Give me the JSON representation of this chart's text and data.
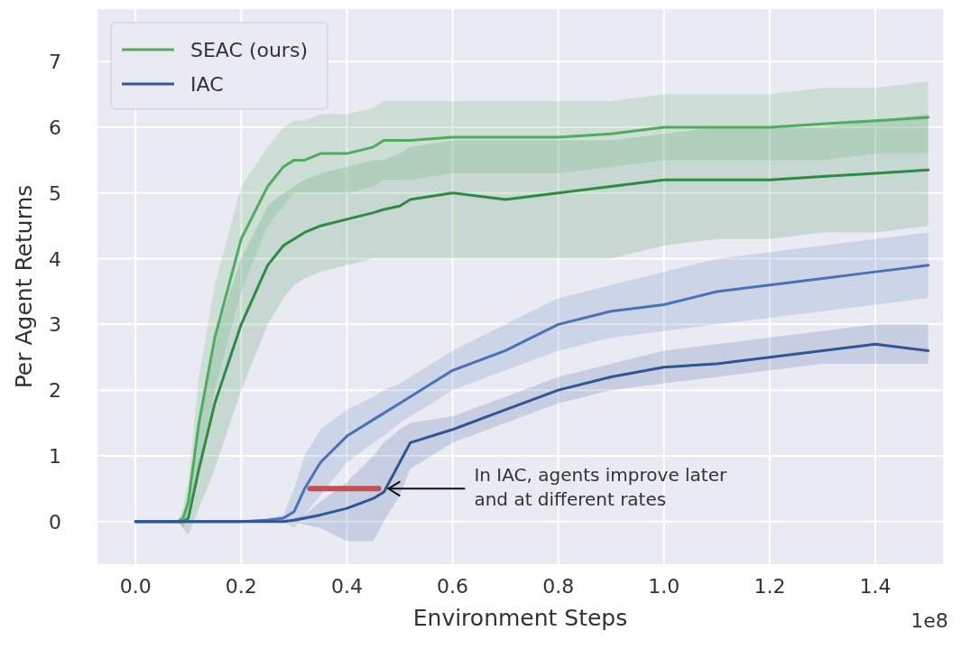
{
  "chart_data": {
    "type": "line",
    "xlabel": "Environment Steps",
    "ylabel": "Per Agent Returns",
    "x": [
      0,
      0.05,
      0.08,
      0.09,
      0.1,
      0.12,
      0.15,
      0.2,
      0.25,
      0.28,
      0.3,
      0.32,
      0.35,
      0.4,
      0.45,
      0.47,
      0.5,
      0.52,
      0.6,
      0.7,
      0.8,
      0.9,
      1.0,
      1.1,
      1.2,
      1.3,
      1.4,
      1.5
    ],
    "series": [
      {
        "name": "SEAC (ours)",
        "color": "#4fab5e",
        "values": [
          0,
          0,
          0,
          0.05,
          0.3,
          1.5,
          2.8,
          4.3,
          5.1,
          5.4,
          5.5,
          5.5,
          5.6,
          5.6,
          5.7,
          5.8,
          5.8,
          5.8,
          5.85,
          5.85,
          5.85,
          5.9,
          6.0,
          6.0,
          6.0,
          6.05,
          6.1,
          6.15
        ],
        "lower": [
          0,
          0,
          0,
          -0.1,
          0,
          0.8,
          2.0,
          3.5,
          4.5,
          4.8,
          5.0,
          5.0,
          5.0,
          5.0,
          5.1,
          5.2,
          5.2,
          5.2,
          5.3,
          5.3,
          5.3,
          5.4,
          5.5,
          5.5,
          5.5,
          5.5,
          5.6,
          5.6
        ],
        "upper": [
          0,
          0,
          0,
          0.2,
          0.6,
          2.2,
          3.6,
          5.1,
          5.7,
          6.0,
          6.1,
          6.1,
          6.2,
          6.2,
          6.3,
          6.4,
          6.4,
          6.4,
          6.4,
          6.4,
          6.4,
          6.4,
          6.5,
          6.5,
          6.5,
          6.6,
          6.6,
          6.7
        ]
      },
      {
        "color": "#2e8b45",
        "values": [
          0,
          0,
          0,
          0,
          0.05,
          0.8,
          1.8,
          3.0,
          3.9,
          4.2,
          4.3,
          4.4,
          4.5,
          4.6,
          4.7,
          4.75,
          4.8,
          4.9,
          5.0,
          4.9,
          5.0,
          5.1,
          5.2,
          5.2,
          5.2,
          5.25,
          5.3,
          5.35
        ],
        "lower": [
          0,
          0,
          0,
          -0.1,
          -0.2,
          0.2,
          0.8,
          2.0,
          3.0,
          3.4,
          3.6,
          3.7,
          3.8,
          3.9,
          4.0,
          4.0,
          4.0,
          4.0,
          4.0,
          4.0,
          4.0,
          4.0,
          4.2,
          4.3,
          4.3,
          4.4,
          4.4,
          4.5
        ],
        "upper": [
          0,
          0,
          0,
          0.1,
          0.4,
          1.6,
          2.8,
          4.0,
          4.8,
          5.0,
          5.1,
          5.2,
          5.3,
          5.4,
          5.5,
          5.5,
          5.6,
          5.7,
          5.8,
          5.8,
          5.8,
          5.8,
          5.9,
          6.0,
          6.0,
          6.0,
          6.1,
          6.2
        ]
      },
      {
        "color": "#4a72b8",
        "values": [
          0,
          0,
          0,
          0,
          0,
          0,
          0,
          0,
          0.02,
          0.05,
          0.15,
          0.5,
          0.9,
          1.3,
          1.55,
          1.65,
          1.8,
          1.9,
          2.3,
          2.6,
          3.0,
          3.2,
          3.3,
          3.5,
          3.6,
          3.7,
          3.8,
          3.9
        ],
        "lower": [
          0,
          0,
          0,
          0,
          0,
          0,
          0,
          0,
          0,
          0,
          -0.1,
          0.1,
          0.4,
          0.9,
          1.2,
          1.3,
          1.5,
          1.6,
          2.0,
          2.3,
          2.6,
          2.8,
          2.9,
          3.0,
          3.1,
          3.2,
          3.3,
          3.4
        ],
        "upper": [
          0,
          0,
          0,
          0,
          0,
          0,
          0,
          0,
          0.05,
          0.1,
          0.5,
          1.0,
          1.4,
          1.7,
          1.9,
          2.0,
          2.1,
          2.2,
          2.6,
          3.0,
          3.4,
          3.6,
          3.8,
          4.0,
          4.1,
          4.2,
          4.3,
          4.4
        ]
      },
      {
        "name": "IAC",
        "color": "#2f5597",
        "values": [
          0,
          0,
          0,
          0,
          0,
          0,
          0,
          0,
          0,
          0,
          0.02,
          0.05,
          0.1,
          0.2,
          0.35,
          0.45,
          0.9,
          1.2,
          1.4,
          1.7,
          2.0,
          2.2,
          2.35,
          2.4,
          2.5,
          2.6,
          2.7,
          2.6
        ],
        "lower": [
          0,
          0,
          0,
          0,
          0,
          0,
          0,
          0,
          0,
          0,
          0,
          -0.05,
          -0.1,
          -0.3,
          -0.3,
          0,
          0.4,
          0.8,
          1.2,
          1.5,
          1.8,
          2.0,
          2.1,
          2.2,
          2.3,
          2.4,
          2.4,
          2.4
        ],
        "upper": [
          0,
          0,
          0,
          0,
          0,
          0,
          0,
          0,
          0,
          0,
          0.05,
          0.1,
          0.3,
          0.6,
          1.0,
          1.2,
          1.4,
          1.5,
          1.6,
          1.9,
          2.2,
          2.4,
          2.6,
          2.7,
          2.8,
          2.9,
          3.0,
          3.0
        ]
      },
      {
        "color": "#c44e52",
        "x": [
          0.33,
          0.46
        ],
        "values": [
          0.5,
          0.5
        ]
      }
    ],
    "xlim": [
      -0.072,
      1.528
    ],
    "ylim": [
      -0.65,
      7.8
    ],
    "xticks": [
      {
        "value": 0,
        "label": "0.0"
      },
      0.2,
      0.4,
      0.6,
      0.8,
      {
        "value": 1,
        "label": "1.0"
      },
      1.2,
      1.4
    ],
    "yticks": [
      0,
      1,
      2,
      3,
      4,
      5,
      6,
      7
    ],
    "grid": true,
    "legend": "top left",
    "annotations": [
      {
        "text": "In IAC, agents improve later\nand at different rates",
        "x": 0.47,
        "y": 0.5
      },
      "1e8"
    ]
  }
}
